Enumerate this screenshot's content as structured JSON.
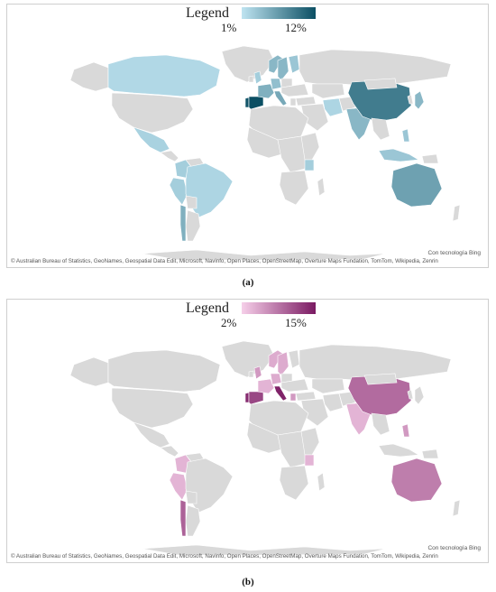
{
  "panels": [
    {
      "caption": "(a)",
      "legend": {
        "title": "Legend",
        "min_label": "1%",
        "max_label": "12%",
        "color_low": "#bfe4f1",
        "color_high": "#0b4f63"
      },
      "highlighted_countries": [
        {
          "name": "Canada",
          "level": 0.08
        },
        {
          "name": "United Kingdom",
          "level": 0.15
        },
        {
          "name": "Portugal",
          "level": 0.95
        },
        {
          "name": "Spain",
          "level": 1.0
        },
        {
          "name": "France",
          "level": 0.35
        },
        {
          "name": "Italy",
          "level": 0.4
        },
        {
          "name": "Germany",
          "level": 0.25
        },
        {
          "name": "Norway",
          "level": 0.3
        },
        {
          "name": "Sweden",
          "level": 0.3
        },
        {
          "name": "Finland",
          "level": 0.2
        },
        {
          "name": "Mexico",
          "level": 0.12
        },
        {
          "name": "Colombia",
          "level": 0.15
        },
        {
          "name": "Peru",
          "level": 0.15
        },
        {
          "name": "Brazil",
          "level": 0.1
        },
        {
          "name": "Chile",
          "level": 0.35
        },
        {
          "name": "Tanzania",
          "level": 0.15
        },
        {
          "name": "Iran",
          "level": 0.1
        },
        {
          "name": "India",
          "level": 0.3
        },
        {
          "name": "China",
          "level": 0.7
        },
        {
          "name": "Japan",
          "level": 0.3
        },
        {
          "name": "Indonesia",
          "level": 0.2
        },
        {
          "name": "Philippines",
          "level": 0.2
        },
        {
          "name": "Australia",
          "level": 0.45
        }
      ],
      "credit_bing": "Con tecnología Bing",
      "attribution": "© Australian Bureau of Statistics, GeoNames, Geospatial Data Edit, Microsoft, Navinfo, Open Places, OpenStreetMap, Overture Maps Fundation, TomTom, Wikipedia, Zenrin"
    },
    {
      "caption": "(b)",
      "legend": {
        "title": "Legend",
        "min_label": "2%",
        "max_label": "15%",
        "color_low": "#f6cfe9",
        "color_high": "#7a1a62"
      },
      "highlighted_countries": [
        {
          "name": "United Kingdom",
          "level": 0.3
        },
        {
          "name": "Portugal",
          "level": 0.9
        },
        {
          "name": "Spain",
          "level": 0.75
        },
        {
          "name": "Italy",
          "level": 0.95
        },
        {
          "name": "France",
          "level": 0.15
        },
        {
          "name": "Germany",
          "level": 0.2
        },
        {
          "name": "Norway",
          "level": 0.2
        },
        {
          "name": "Sweden",
          "level": 0.2
        },
        {
          "name": "Greece",
          "level": 0.3
        },
        {
          "name": "Colombia",
          "level": 0.15
        },
        {
          "name": "Peru",
          "level": 0.15
        },
        {
          "name": "Chile",
          "level": 0.6
        },
        {
          "name": "Tanzania",
          "level": 0.15
        },
        {
          "name": "India",
          "level": 0.15
        },
        {
          "name": "China",
          "level": 0.55
        },
        {
          "name": "Philippines",
          "level": 0.3
        },
        {
          "name": "Australia",
          "level": 0.45
        }
      ],
      "credit_bing": "Con tecnología Bing",
      "attribution": "© Australian Bureau of Statistics, GeoNames, Geospatial Data Edit, Microsoft, Navinfo, Open Places, OpenStreetMap, Overture Maps Fundation, TomTom, Wikipedia, Zenrin"
    }
  ]
}
